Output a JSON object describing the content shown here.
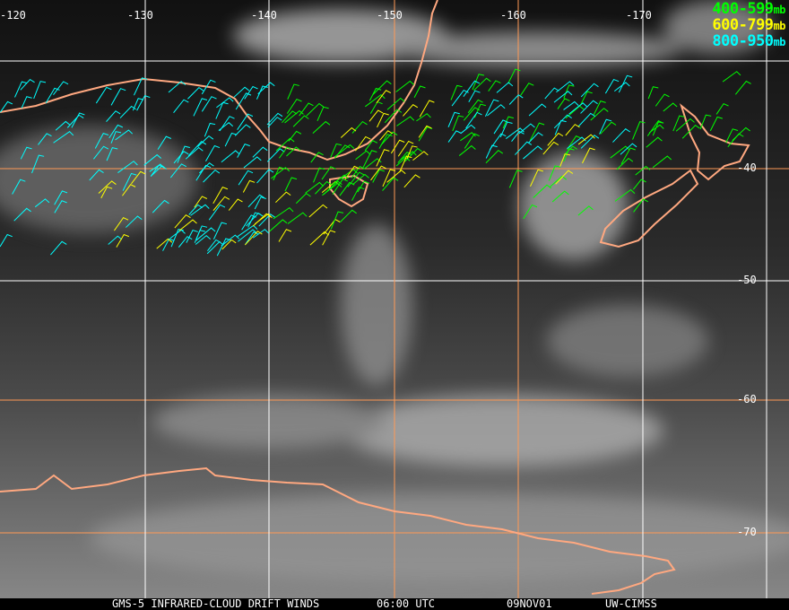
{
  "title": "GMS-5 INFRARED-CLOUD DRIFT WINDS",
  "time": "06:00 UTC",
  "date": "09NOV01",
  "credit": "UW-CIMSS",
  "legend": [
    {
      "range": "400-599",
      "unit": "mb",
      "color": "#00ff00"
    },
    {
      "range": "600-799",
      "unit": "mb",
      "color": "#ffff00"
    },
    {
      "range": "800-950",
      "unit": "mb",
      "color": "#00ffff"
    }
  ],
  "longitude_labels": [
    "-120",
    "-130",
    "-140",
    "-150",
    "-160",
    "-170"
  ],
  "latitude_labels": [
    "-40",
    "-50",
    "-60",
    "-70"
  ],
  "colors": {
    "coastline": "#ffa880",
    "grid_orange": "#ff9955",
    "grid_white": "#ffffff"
  }
}
